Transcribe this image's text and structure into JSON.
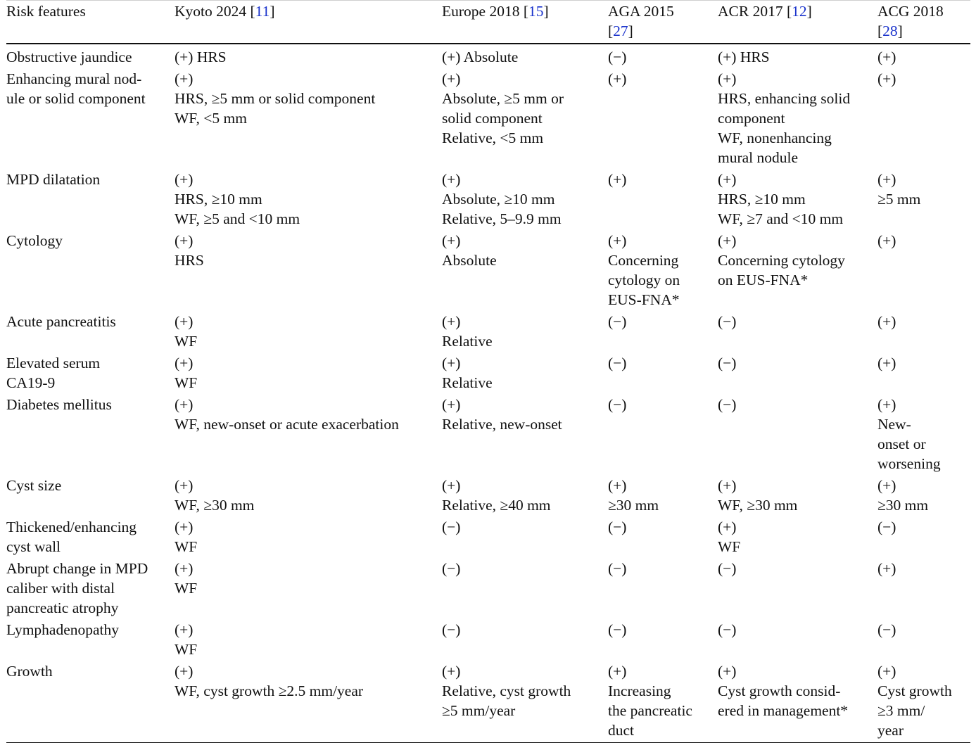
{
  "table": {
    "columns": [
      {
        "label": "Risk features",
        "ref": "",
        "ref_br": false
      },
      {
        "label": "Kyoto 2024 ",
        "ref": "11",
        "ref_br": false
      },
      {
        "label": "Europe 2018 ",
        "ref": "15",
        "ref_br": false
      },
      {
        "label": "AGA 2015",
        "ref": "27",
        "ref_br": true
      },
      {
        "label": "ACR 2017 ",
        "ref": "12",
        "ref_br": false
      },
      {
        "label": "ACG 2018",
        "ref": "28",
        "ref_br": true
      }
    ],
    "rows": [
      {
        "feature": [
          "Obstructive jaundice"
        ],
        "cells": [
          [
            "(+) HRS"
          ],
          [
            "(+) Absolute"
          ],
          [
            "(−)"
          ],
          [
            "(+) HRS"
          ],
          [
            "(+)"
          ]
        ]
      },
      {
        "feature": [
          "Enhancing mural nod-",
          "ule or solid component"
        ],
        "cells": [
          [
            "(+)",
            "HRS, ≥5 mm or solid component",
            "WF, <5 mm"
          ],
          [
            "(+)",
            "Absolute, ≥5 mm or",
            "solid component",
            "Relative, <5 mm"
          ],
          [
            "(+)"
          ],
          [
            "(+)",
            "HRS, enhancing solid",
            "component",
            "WF, nonenhancing",
            "mural nodule"
          ],
          [
            "(+)"
          ]
        ]
      },
      {
        "feature": [
          "MPD dilatation"
        ],
        "cells": [
          [
            "(+)",
            "HRS, ≥10 mm",
            "WF, ≥5 and <10 mm"
          ],
          [
            "(+)",
            "Absolute, ≥10 mm",
            "Relative, 5–9.9 mm"
          ],
          [
            "(+)"
          ],
          [
            "(+)",
            "HRS, ≥10 mm",
            "WF, ≥7 and <10 mm"
          ],
          [
            "(+)",
            "≥5 mm"
          ]
        ]
      },
      {
        "feature": [
          "Cytology"
        ],
        "cells": [
          [
            "(+)",
            "HRS"
          ],
          [
            "(+)",
            "Absolute"
          ],
          [
            "(+)",
            "Concerning",
            "cytology on",
            "EUS-FNA*"
          ],
          [
            "(+)",
            "Concerning cytology",
            "on EUS-FNA*"
          ],
          [
            "(+)"
          ]
        ]
      },
      {
        "feature": [
          "Acute pancreatitis"
        ],
        "cells": [
          [
            "(+)",
            "WF"
          ],
          [
            "(+)",
            "Relative"
          ],
          [
            "(−)"
          ],
          [
            "(−)"
          ],
          [
            "(+)"
          ]
        ]
      },
      {
        "feature": [
          "Elevated serum",
          "CA19-9"
        ],
        "cells": [
          [
            "(+)",
            "WF"
          ],
          [
            "(+)",
            "Relative"
          ],
          [
            "(−)"
          ],
          [
            "(−)"
          ],
          [
            "(+)"
          ]
        ]
      },
      {
        "feature": [
          "Diabetes mellitus"
        ],
        "cells": [
          [
            "(+)",
            "WF, new-onset or acute exacerbation"
          ],
          [
            "(+)",
            "Relative, new-onset"
          ],
          [
            "(−)"
          ],
          [
            "(−)"
          ],
          [
            "(+)",
            "New-",
            "onset or",
            "worsening"
          ]
        ]
      },
      {
        "feature": [
          "Cyst size"
        ],
        "cells": [
          [
            "(+)",
            "WF, ≥30 mm"
          ],
          [
            "(+)",
            "Relative, ≥40 mm"
          ],
          [
            "(+)",
            "≥30 mm"
          ],
          [
            "(+)",
            "WF, ≥30 mm"
          ],
          [
            "(+)",
            "≥30 mm"
          ]
        ]
      },
      {
        "feature": [
          "Thickened/enhancing",
          "cyst wall"
        ],
        "cells": [
          [
            "(+)",
            "WF"
          ],
          [
            "(−)"
          ],
          [
            "(−)"
          ],
          [
            "(+)",
            "WF"
          ],
          [
            "(−)"
          ]
        ]
      },
      {
        "feature": [
          "Abrupt change in MPD",
          "caliber with distal",
          "pancreatic atrophy"
        ],
        "cells": [
          [
            "(+)",
            "WF"
          ],
          [
            "(−)"
          ],
          [
            "(−)"
          ],
          [
            "(−)"
          ],
          [
            "(+)"
          ]
        ]
      },
      {
        "feature": [
          "Lymphadenopathy"
        ],
        "cells": [
          [
            "(+)",
            "WF"
          ],
          [
            "(−)"
          ],
          [
            "(−)"
          ],
          [
            "(−)"
          ],
          [
            "(−)"
          ]
        ]
      },
      {
        "feature": [
          "Growth"
        ],
        "cells": [
          [
            "(+)",
            "WF, cyst growth ≥2.5 mm/year"
          ],
          [
            "(+)",
            "Relative, cyst growth",
            "≥5 mm/year"
          ],
          [
            "(+)",
            "Increasing",
            "the pancreatic",
            "duct"
          ],
          [
            "(+)",
            "Cyst growth consid-",
            "ered in management*"
          ],
          [
            "(+)",
            "Cyst growth",
            "≥3 mm/",
            "year"
          ]
        ]
      }
    ]
  }
}
